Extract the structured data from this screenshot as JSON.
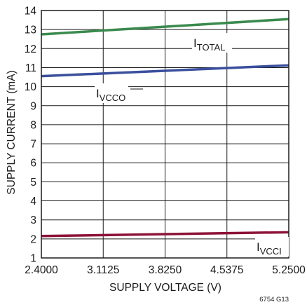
{
  "chart_data": {
    "type": "line",
    "title": "",
    "xlabel": "SUPPLY VOLTAGE (V)",
    "ylabel": "SUPPLY CURRENT (mA)",
    "xlim": [
      2.4,
      5.25
    ],
    "ylim": [
      1,
      14
    ],
    "x_ticks": [
      "2.4000",
      "3.1125",
      "3.8250",
      "4.5375",
      "5.2500"
    ],
    "y_ticks": [
      "1",
      "2",
      "3",
      "4",
      "5",
      "6",
      "7",
      "8",
      "9",
      "10",
      "11",
      "12",
      "13",
      "14"
    ],
    "grid": true,
    "series": [
      {
        "name": "TOTAL",
        "name_main": "I",
        "name_sub": "TOTAL",
        "color": "#3a8a4e",
        "x": [
          2.4,
          5.25
        ],
        "y": [
          12.75,
          13.55
        ]
      },
      {
        "name": "VCCO",
        "name_main": "I",
        "name_sub": "VCCO",
        "color": "#3a4f9c",
        "x": [
          2.4,
          5.25
        ],
        "y": [
          10.55,
          11.12
        ]
      },
      {
        "name": "VCCI",
        "name_main": "I",
        "name_sub": "VCCI",
        "color": "#8c1238",
        "x": [
          2.4,
          5.25
        ],
        "y": [
          2.15,
          2.35
        ]
      }
    ],
    "figure_id": "6754 G13"
  }
}
